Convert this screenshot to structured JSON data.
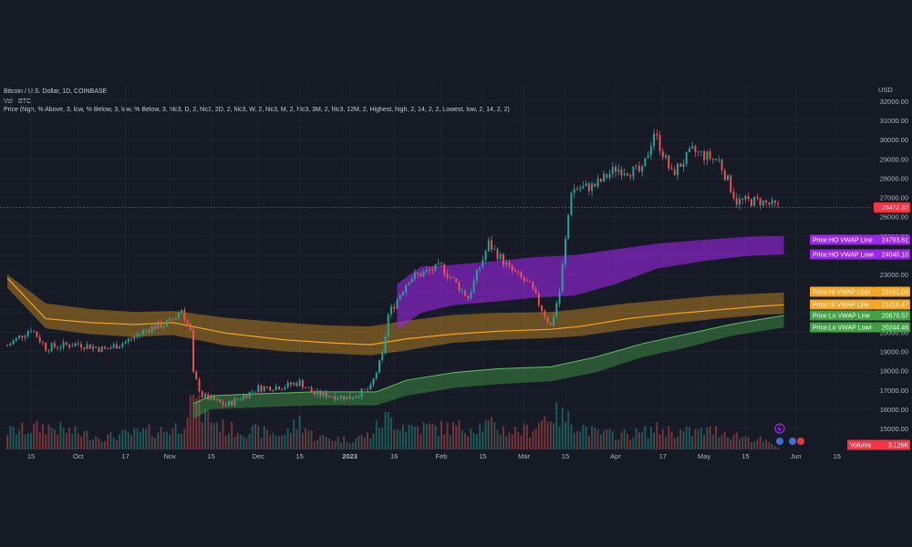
{
  "header": {
    "symbol_line": "Bitcoin / U.S. Dollar, 1D, COINBASE",
    "vol_line": "Vol · BTC",
    "indicator_line": "Price (high, % Above, 3, low, % Below, 3, low, % Below, 3, hlc3, D, 2, hlc3, 2D, 2, hlc3, W, 2, hlc3, M, 2, hlc3, 3M, 2, hlc3, 12M, 2, Highest, high, 2, 14, 2, 2, Lowest, low, 2, 14, 2, 2)"
  },
  "colors": {
    "background": "#161a25",
    "grid": "#1f2330",
    "up": "#26a69a",
    "down": "#ef5350",
    "purple": "#9c27e8",
    "orange": "#f5a623",
    "green": "#43a047",
    "price_tag": "#f23645"
  },
  "price_tag": "26472.32",
  "volume_tag": {
    "label": "Volume",
    "value": "3.126K"
  },
  "chart_data": {
    "type": "candlestick",
    "currency": "USD",
    "y_ticks": [
      "32000.00",
      "31000.00",
      "30000.00",
      "29000.00",
      "28000.00",
      "27000.00",
      "26000.00",
      "25000.00",
      "24000.00",
      "23000.00",
      "22000.00",
      "21000.00",
      "20000.00",
      "19000.00",
      "18000.00",
      "17000.00",
      "16000.00",
      "15000.00"
    ],
    "y_range": [
      14500,
      32500
    ],
    "x_ticks": [
      "15",
      "Oct",
      "17",
      "Nov",
      "15",
      "Dec",
      "15",
      "2023",
      "16",
      "Feb",
      "15",
      "Mar",
      "15",
      "Apr",
      "17",
      "May",
      "15",
      "Jun",
      "15"
    ],
    "x_tick_dates": [
      "2022-09-15",
      "2022-10-01",
      "2022-10-17",
      "2022-11-01",
      "2022-11-15",
      "2022-12-01",
      "2022-12-15",
      "2023-01-01",
      "2023-01-16",
      "2023-02-01",
      "2023-02-15",
      "2023-03-01",
      "2023-03-15",
      "2023-04-01",
      "2023-04-17",
      "2023-05-01",
      "2023-05-15",
      "2023-06-01",
      "2023-06-15"
    ],
    "series": {
      "dates": [
        "2022-09-07",
        "2022-09-15",
        "2022-09-20",
        "2022-10-01",
        "2022-10-10",
        "2022-10-17",
        "2022-10-25",
        "2022-11-01",
        "2022-11-05",
        "2022-11-08",
        "2022-11-09",
        "2022-11-12",
        "2022-11-20",
        "2022-12-01",
        "2022-12-10",
        "2022-12-15",
        "2022-12-20",
        "2023-01-01",
        "2023-01-08",
        "2023-01-12",
        "2023-01-14",
        "2023-01-21",
        "2023-02-01",
        "2023-02-10",
        "2023-02-17",
        "2023-02-24",
        "2023-03-03",
        "2023-03-10",
        "2023-03-13",
        "2023-03-17",
        "2023-03-25",
        "2023-04-01",
        "2023-04-10",
        "2023-04-14",
        "2023-04-20",
        "2023-04-27",
        "2023-05-06",
        "2023-05-12",
        "2023-05-20",
        "2023-05-26"
      ],
      "close": [
        19300,
        20200,
        19200,
        19400,
        19100,
        19500,
        20200,
        20500,
        21200,
        20000,
        17800,
        16700,
        16200,
        17100,
        17200,
        17400,
        16800,
        16600,
        17100,
        18800,
        20900,
        22800,
        23400,
        21800,
        24600,
        23300,
        22400,
        20300,
        22100,
        27400,
        27600,
        28500,
        28300,
        30400,
        28200,
        29400,
        28900,
        26800,
        26800,
        26472
      ],
      "volume_k": [
        22,
        25,
        28,
        20,
        15,
        18,
        22,
        24,
        30,
        60,
        100,
        45,
        25,
        22,
        18,
        35,
        15,
        12,
        18,
        35,
        38,
        28,
        26,
        27,
        30,
        22,
        24,
        45,
        40,
        35,
        20,
        18,
        20,
        25,
        22,
        21,
        23,
        17,
        12,
        3.126
      ]
    },
    "overlays": [
      {
        "name": "Price:HO VWAP Line",
        "value": "24793.61",
        "color": "#9c27e8"
      },
      {
        "name": "Price:HO VWAP Lowr",
        "value": "24040.10",
        "color": "#9c27e8"
      },
      {
        "name": "Price:Hi VWAP Uppr",
        "value": "22061.03",
        "color": "#f5a623"
      },
      {
        "name": "Price:Hi VWAP Line",
        "value": "21418.47",
        "color": "#f5a623"
      },
      {
        "name": "Price:Lo VWAP Line",
        "value": "20870.57",
        "color": "#43a047"
      },
      {
        "name": "Price:Lo VWAP Lowr",
        "value": "20244.46",
        "color": "#43a047"
      }
    ],
    "bands": {
      "purple": {
        "dates": [
          "2023-01-17",
          "2023-01-25",
          "2023-02-05",
          "2023-02-20",
          "2023-03-05",
          "2023-03-18",
          "2023-04-01",
          "2023-04-15",
          "2023-05-01",
          "2023-05-15",
          "2023-05-28"
        ],
        "upper": [
          22500,
          23400,
          23500,
          23700,
          23900,
          24000,
          24300,
          24600,
          24800,
          24950,
          25000
        ],
        "lower": [
          20100,
          21000,
          21400,
          21600,
          21800,
          21900,
          22500,
          23300,
          23700,
          23950,
          24040
        ]
      },
      "orange": {
        "dates": [
          "2022-09-07",
          "2022-09-20",
          "2022-10-05",
          "2022-10-20",
          "2022-11-02",
          "2022-11-20",
          "2022-12-10",
          "2022-12-25",
          "2023-01-08",
          "2023-01-20",
          "2023-02-05",
          "2023-02-20",
          "2023-03-10",
          "2023-03-20",
          "2023-04-05",
          "2023-04-20",
          "2023-05-05",
          "2023-05-20",
          "2023-05-28"
        ],
        "upper": [
          23000,
          21500,
          21200,
          21050,
          21100,
          20750,
          20500,
          20350,
          20300,
          20600,
          20900,
          21000,
          21050,
          21200,
          21500,
          21700,
          21900,
          22000,
          22061
        ],
        "line": [
          22800,
          20700,
          20500,
          20400,
          20500,
          19950,
          19600,
          19450,
          19350,
          19650,
          19900,
          20050,
          20150,
          20300,
          20700,
          20950,
          21150,
          21350,
          21418
        ],
        "lower": [
          22300,
          20200,
          19900,
          19750,
          19850,
          19300,
          19000,
          18900,
          18800,
          19050,
          19450,
          19600,
          19700,
          19800,
          20150,
          20450,
          20700,
          20900,
          20950
        ]
      },
      "green": {
        "dates": [
          "2022-11-09",
          "2022-11-15",
          "2022-12-01",
          "2022-12-20",
          "2023-01-10",
          "2023-01-20",
          "2023-02-05",
          "2023-02-20",
          "2023-03-10",
          "2023-03-25",
          "2023-04-10",
          "2023-04-25",
          "2023-05-10",
          "2023-05-28"
        ],
        "upper": [
          16300,
          16700,
          16800,
          16900,
          16900,
          17500,
          17900,
          18100,
          18200,
          18700,
          19400,
          19900,
          20400,
          20870
        ],
        "lower": [
          15500,
          16000,
          16100,
          16200,
          16200,
          16700,
          17100,
          17300,
          17450,
          17900,
          18700,
          19200,
          19800,
          20244
        ]
      }
    }
  }
}
